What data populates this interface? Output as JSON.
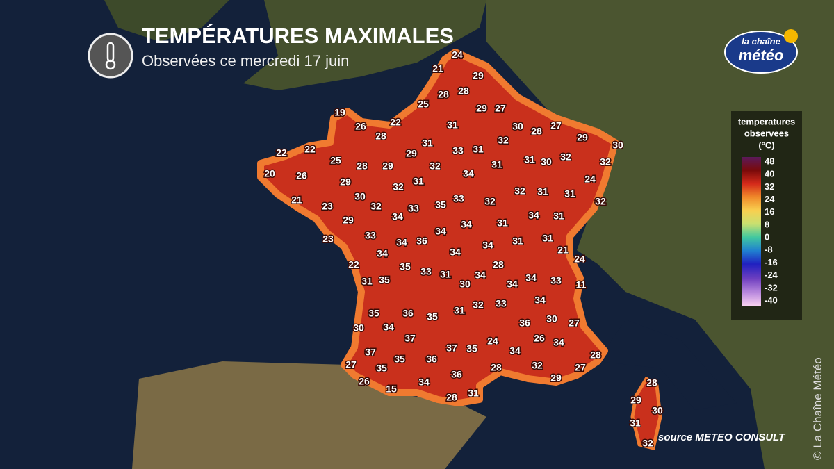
{
  "header": {
    "title": "TEMPÉRATURES MAXIMALES",
    "subtitle": "Observées ce mercredi 17 juin"
  },
  "logo": {
    "top": "la chaîne",
    "bottom": "météo"
  },
  "legend": {
    "title": [
      "temperatures",
      "observees",
      "(°C)"
    ],
    "ticks": [
      48,
      40,
      32,
      24,
      16,
      8,
      0,
      -8,
      -16,
      -24,
      -32,
      -40
    ]
  },
  "stations": [
    24,
    21,
    29,
    28,
    28,
    25,
    29,
    27,
    19,
    22,
    31,
    30,
    28,
    27,
    26,
    28,
    29,
    30,
    31,
    33,
    31,
    32,
    22,
    22,
    25,
    28,
    29,
    29,
    32,
    31,
    30,
    32,
    32,
    20,
    26,
    29,
    34,
    31,
    31,
    32,
    24,
    32,
    31,
    31,
    21,
    23,
    30,
    32,
    33,
    35,
    33,
    32,
    32,
    29,
    34,
    34,
    31,
    23,
    33,
    34,
    34,
    31,
    34,
    36,
    34,
    34,
    34,
    31,
    31,
    21,
    24,
    22,
    35,
    33,
    31,
    28,
    31,
    35,
    34,
    30,
    34,
    34,
    33,
    11,
    32,
    33,
    34,
    31,
    35,
    36,
    35,
    36,
    30,
    27,
    30,
    34,
    37,
    24,
    26,
    34,
    37,
    35,
    34,
    37,
    28,
    27,
    35,
    36,
    35,
    28,
    32,
    27,
    36,
    26,
    34,
    29,
    15,
    28,
    31,
    28,
    29,
    30,
    31,
    32
  ],
  "source": "source METEO CONSULT",
  "copyright": "© La Chaîne Météo"
}
